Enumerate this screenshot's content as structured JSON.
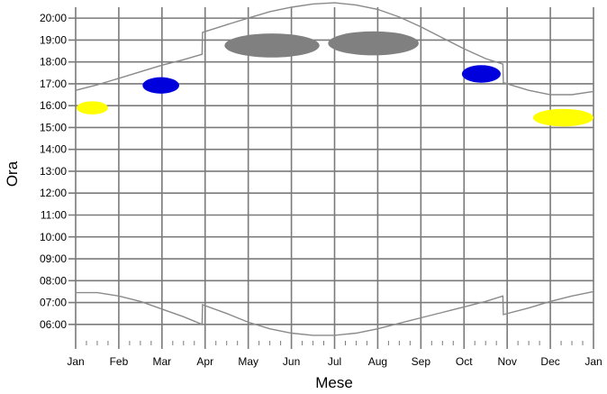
{
  "chart_data": {
    "type": "line",
    "title": "",
    "xlabel": "Mese",
    "ylabel": "Ora",
    "x_tick_labels": [
      "Jan",
      "Feb",
      "Mar",
      "Apr",
      "May",
      "Jun",
      "Jul",
      "Aug",
      "Sep",
      "Oct",
      "Nov",
      "Dec",
      "Jan"
    ],
    "y_tick_labels": [
      "06:00",
      "07:00",
      "08:00",
      "09:00",
      "10:00",
      "11:00",
      "12:00",
      "13:00",
      "14:00",
      "15:00",
      "16:00",
      "17:00",
      "18:00",
      "19:00",
      "20:00"
    ],
    "xlim": [
      0,
      12
    ],
    "ylim": [
      5.25,
      20.5
    ],
    "grid": true,
    "series": [
      {
        "color": "#8a8a8a",
        "x": [
          0,
          0.5,
          1,
          1.5,
          2,
          2.5,
          2.93,
          2.94,
          3.5,
          4,
          4.5,
          5,
          5.5,
          6,
          6.5,
          7,
          7.5,
          8,
          8.5,
          9,
          9.5,
          9.9,
          9.91,
          10.5,
          11,
          11.5,
          12
        ],
        "y": [
          16.7,
          16.95,
          17.25,
          17.55,
          17.85,
          18.1,
          18.35,
          19.35,
          19.7,
          20.0,
          20.3,
          20.5,
          20.65,
          20.7,
          20.6,
          20.4,
          20.05,
          19.6,
          19.1,
          18.6,
          18.15,
          17.9,
          17.05,
          16.7,
          16.5,
          16.5,
          16.65
        ]
      },
      {
        "color": "#8a8a8a",
        "x": [
          0,
          0.5,
          1,
          1.5,
          2,
          2.5,
          2.93,
          2.94,
          3.5,
          4,
          4.5,
          5,
          5.5,
          6,
          6.5,
          7,
          7.5,
          8,
          8.5,
          9,
          9.5,
          9.9,
          9.91,
          10.5,
          11,
          11.5,
          12
        ],
        "y": [
          7.45,
          7.45,
          7.3,
          7.05,
          6.7,
          6.35,
          6.0,
          6.9,
          6.5,
          6.1,
          5.8,
          5.6,
          5.5,
          5.5,
          5.6,
          5.8,
          6.05,
          6.3,
          6.55,
          6.8,
          7.05,
          7.3,
          6.45,
          6.75,
          7.05,
          7.3,
          7.5
        ]
      }
    ],
    "regions": [
      {
        "color": "#ffff00",
        "x": [
          0.02,
          0.75
        ],
        "y": [
          15.6,
          16.2
        ]
      },
      {
        "color": "#0000dd",
        "x": [
          1.55,
          2.4
        ],
        "y": [
          16.55,
          17.3
        ]
      },
      {
        "color": "#808080",
        "x": [
          3.45,
          5.65
        ],
        "y": [
          18.2,
          19.3
        ]
      },
      {
        "color": "#808080",
        "x": [
          5.85,
          7.95
        ],
        "y": [
          18.3,
          19.4
        ]
      },
      {
        "color": "#0000dd",
        "x": [
          8.95,
          9.85
        ],
        "y": [
          17.05,
          17.85
        ]
      },
      {
        "color": "#ffff00",
        "x": [
          10.6,
          12.0
        ],
        "y": [
          15.05,
          15.85
        ]
      }
    ]
  }
}
